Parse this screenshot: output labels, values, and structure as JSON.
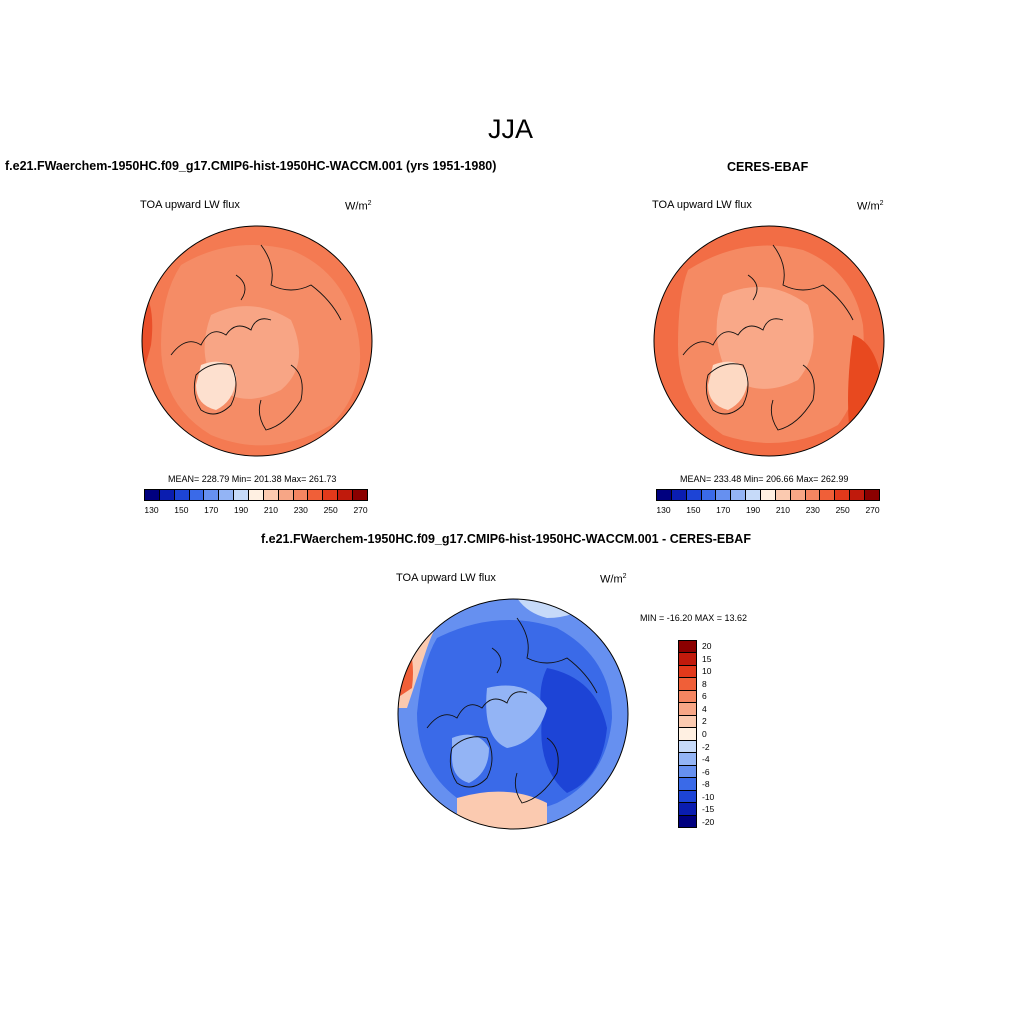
{
  "page": {
    "season": "JJA",
    "panel1_title": "f.e21.FWaerchem-1950HC.f09_g17.CMIP6-hist-1950HC-WACCM.001 (yrs 1951-1980)",
    "panel2_title": "CERES-EBAF",
    "panel3_title": "f.e21.FWaerchem-1950HC.f09_g17.CMIP6-hist-1950HC-WACCM.001 - CERES-EBAF"
  },
  "maps": [
    {
      "variable": "TOA upward LW flux",
      "units": "W/m",
      "units_sup": "2",
      "stats": "MEAN= 228.79  Min= 201.38  Max= 261.73"
    },
    {
      "variable": "TOA upward LW flux",
      "units": "W/m",
      "units_sup": "2",
      "stats": "MEAN= 233.48  Min= 206.66  Max= 262.99"
    },
    {
      "variable": "TOA upward LW flux",
      "units": "W/m",
      "units_sup": "2",
      "stats": "MIN = -16.20 MAX =  13.62"
    }
  ],
  "colorbar_abs": {
    "labels": [
      "130",
      "150",
      "170",
      "190",
      "210",
      "230",
      "250",
      "270"
    ],
    "colors": [
      "#00007f",
      "#0a1db0",
      "#1d44d6",
      "#3a6ae8",
      "#6690f0",
      "#93b4f5",
      "#c6daf9",
      "#fff0e2",
      "#fbcab0",
      "#f7a686",
      "#f48561",
      "#f05f38",
      "#e2391b",
      "#c01a0c",
      "#8b0000"
    ]
  },
  "colorbar_diff": {
    "labels": [
      "20",
      "15",
      "10",
      "8",
      "6",
      "4",
      "2",
      "0",
      "-2",
      "-4",
      "-6",
      "-8",
      "-10",
      "-15",
      "-20"
    ],
    "colors": [
      "#8b0000",
      "#c01a0c",
      "#e2391b",
      "#f05f38",
      "#f48561",
      "#f7a686",
      "#fbcab0",
      "#fff0e2",
      "#c6daf9",
      "#93b4f5",
      "#6690f0",
      "#3a6ae8",
      "#1d44d6",
      "#0a1db0",
      "#00007f"
    ]
  }
}
